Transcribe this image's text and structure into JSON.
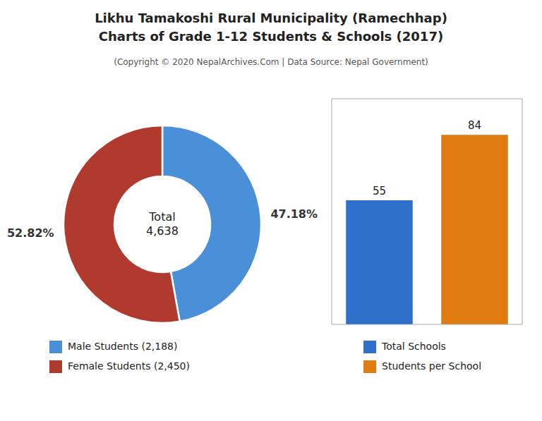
{
  "chart_data": [
    {
      "type": "pie",
      "title": "Likhu Tamakoshi Rural Municipality (Ramechhap)\nCharts of Grade 1-12 Students & Schools (2017)",
      "subtitle": "(Copyright © 2020 NepalArchives.Com | Data Source: Nepal Government)",
      "categories": [
        "Male Students (2,188)",
        "Female Students (2,450)"
      ],
      "values": [
        47.18,
        52.82
      ],
      "value_labels": [
        "47.18%",
        "52.82%"
      ],
      "colors": [
        "#4a90d9",
        "#b03a2e"
      ],
      "annotations": [
        "Total\n4,638"
      ],
      "data_labels": true,
      "legend": "bottom"
    },
    {
      "type": "bar",
      "categories": [
        "Total Schools",
        "Students per School"
      ],
      "values": [
        55,
        84
      ],
      "colors": [
        "#2e6fcc",
        "#e07b10"
      ],
      "ylim": [
        0,
        100
      ],
      "yticks": [],
      "tick_labels": false,
      "data_labels": true,
      "grid": false,
      "legend": "bottom"
    }
  ]
}
